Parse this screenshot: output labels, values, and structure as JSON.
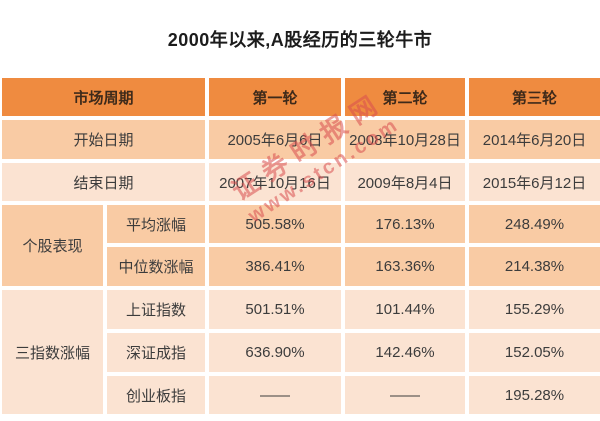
{
  "page": {
    "title": "2000年以来,A股经历的三轮牛市"
  },
  "watermark": {
    "line1": "证券时报网",
    "line2": "www.stcn.com"
  },
  "colors": {
    "header_bg": "#EF8B40",
    "band_dark": "#F9CBA4",
    "band_light": "#FBE3D2",
    "gap": "#FFFFFF",
    "header_text": "#3E2A1A",
    "body_text": "#3C3C3C",
    "title_text": "#1C1C1C",
    "watermark_text": "#D94F4F"
  },
  "table": {
    "header": {
      "market_cycle": "市场周期",
      "round1": "第一轮",
      "round2": "第二轮",
      "round3": "第三轮"
    },
    "start_date": {
      "label": "开始日期",
      "values": [
        "2005年6月6日",
        "2008年10月28日",
        "2014年6月20日"
      ]
    },
    "end_date": {
      "label": "结束日期",
      "values": [
        "2007年10月16日",
        "2009年8月4日",
        "2015年6月12日"
      ]
    },
    "stock_performance": {
      "group_label": "个股表现",
      "rows": [
        {
          "label": "平均涨幅",
          "values": [
            "505.58%",
            "176.13%",
            "248.49%"
          ]
        },
        {
          "label": "中位数涨幅",
          "values": [
            "386.41%",
            "163.36%",
            "214.38%"
          ]
        }
      ]
    },
    "index_gain": {
      "group_label": "三指数涨幅",
      "rows": [
        {
          "label": "上证指数",
          "values": [
            "501.51%",
            "101.44%",
            "155.29%"
          ]
        },
        {
          "label": "深证成指",
          "values": [
            "636.90%",
            "142.46%",
            "152.05%"
          ]
        },
        {
          "label": "创业板指",
          "values": [
            "——",
            "——",
            "195.28%"
          ]
        }
      ]
    }
  },
  "chart_data": {
    "type": "table",
    "title": "2000年以来,A股经历的三轮牛市",
    "columns": [
      "市场周期",
      "",
      "第一轮",
      "第二轮",
      "第三轮"
    ],
    "rows": [
      [
        "开始日期",
        "",
        "2005年6月6日",
        "2008年10月28日",
        "2014年6月20日"
      ],
      [
        "结束日期",
        "",
        "2007年10月16日",
        "2009年8月4日",
        "2015年6月12日"
      ],
      [
        "个股表现",
        "平均涨幅",
        "505.58%",
        "176.13%",
        "248.49%"
      ],
      [
        "个股表现",
        "中位数涨幅",
        "386.41%",
        "163.36%",
        "214.38%"
      ],
      [
        "三指数涨幅",
        "上证指数",
        "501.51%",
        "101.44%",
        "155.29%"
      ],
      [
        "三指数涨幅",
        "深证成指",
        "636.90%",
        "142.46%",
        "152.05%"
      ],
      [
        "三指数涨幅",
        "创业板指",
        "——",
        "——",
        "195.28%"
      ]
    ],
    "legend_position": "none",
    "grid": false
  }
}
